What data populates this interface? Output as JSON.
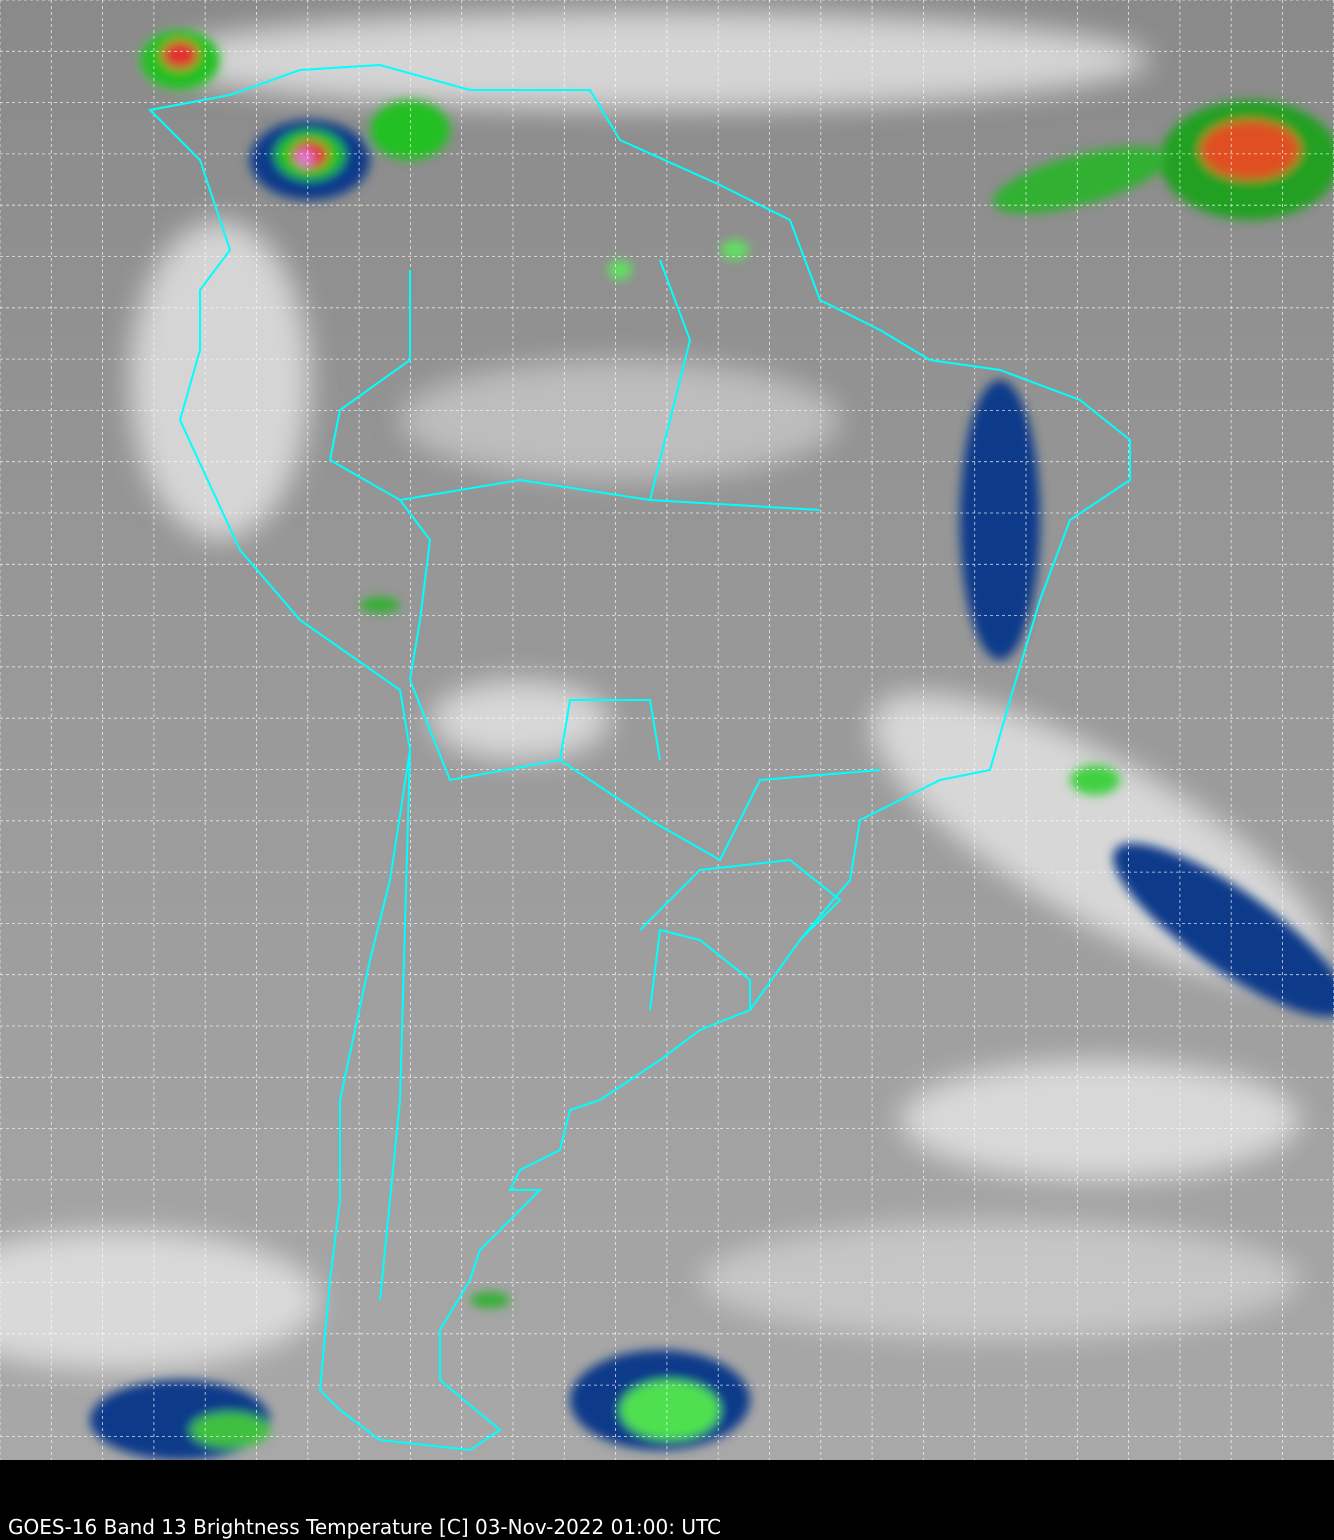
{
  "caption": "GOES-16 Band 13  Brightness Temperature [C] 03-Nov-2022 01:00: UTC",
  "colors": {
    "border_lines": "#00ffff",
    "grid_lines": "#ffffff",
    "background": "#000000"
  }
}
